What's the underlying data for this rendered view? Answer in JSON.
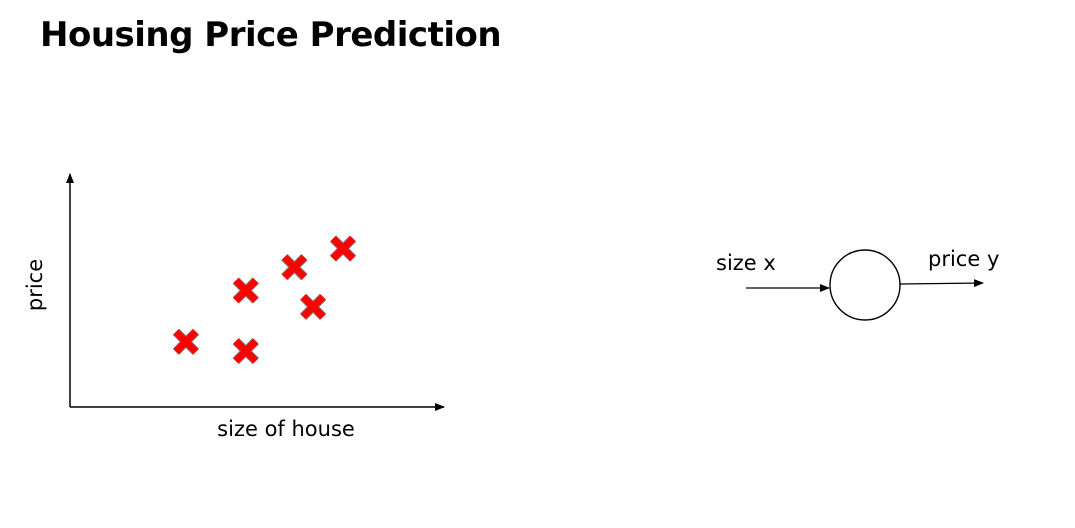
{
  "slide": {
    "title": "Housing Price Prediction"
  },
  "chart_data": {
    "type": "scatter",
    "title": "",
    "xlabel": "size of house",
    "ylabel": "price",
    "xlim": [
      0,
      10
    ],
    "ylim": [
      0,
      10
    ],
    "grid": false,
    "marker": "x",
    "marker_color": "#ff0000",
    "marker_outline_color": "#7f7f7f",
    "points": [
      {
        "x": 3.1,
        "y": 2.8
      },
      {
        "x": 4.7,
        "y": 2.4
      },
      {
        "x": 4.7,
        "y": 5.0
      },
      {
        "x": 6.0,
        "y": 6.0
      },
      {
        "x": 6.5,
        "y": 4.3
      },
      {
        "x": 7.3,
        "y": 6.8
      }
    ]
  },
  "neuron_diagram": {
    "input_label": "size x",
    "output_label": "price y",
    "line_color": "#000000"
  }
}
